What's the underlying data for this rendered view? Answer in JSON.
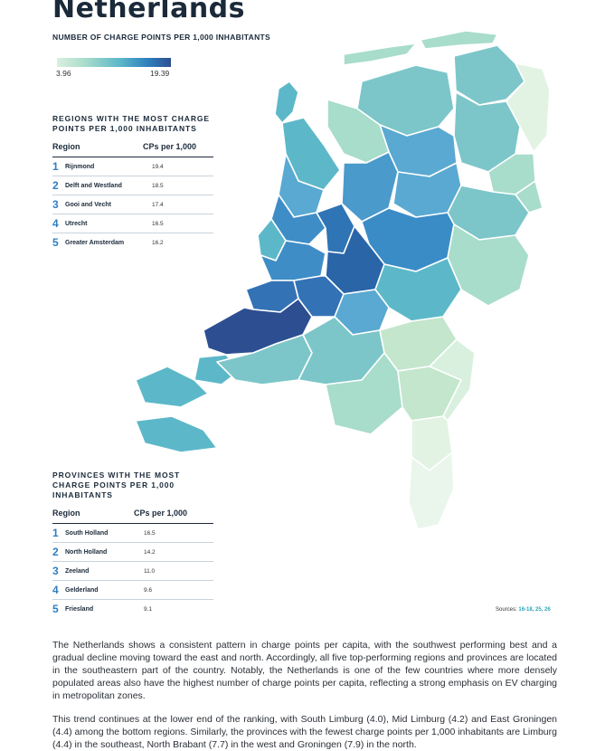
{
  "header": {
    "title": "Netherlands",
    "subtitle": "NUMBER OF CHARGE POINTS PER 1,000 INHABITANTS"
  },
  "legend": {
    "min": "3.96",
    "max": "19.39",
    "colors": [
      "#d9f0df",
      "#a8dccb",
      "#5cb8c9",
      "#2d7fbd",
      "#2d4f91"
    ]
  },
  "regions_panel": {
    "title": "REGIONS WITH THE MOST CHARGE POINTS PER 1,000 INHABITANTS",
    "col_region": "Region",
    "col_value": "CPs per 1,000",
    "rows": [
      {
        "rank": "1",
        "name": "Rijnmond",
        "value": "19.4"
      },
      {
        "rank": "2",
        "name": "Delft and Westland",
        "value": "18.5"
      },
      {
        "rank": "3",
        "name": "Gooi and Vecht",
        "value": "17.4"
      },
      {
        "rank": "4",
        "name": "Utrecht",
        "value": "16.5"
      },
      {
        "rank": "5",
        "name": "Greater Amsterdam",
        "value": "16.2"
      }
    ]
  },
  "provinces_panel": {
    "title": "PROVINCES WITH THE MOST CHARGE POINTS PER 1,000 INHABITANTS",
    "col_region": "Region",
    "col_value": "CPs per 1,000",
    "rows": [
      {
        "rank": "1",
        "name": "South Holland",
        "value": "16.5"
      },
      {
        "rank": "2",
        "name": "North Holland",
        "value": "14.2"
      },
      {
        "rank": "3",
        "name": "Zeeland",
        "value": "11.0"
      },
      {
        "rank": "4",
        "name": "Gelderland",
        "value": "9.6"
      },
      {
        "rank": "5",
        "name": "Friesland",
        "value": "9.1"
      }
    ]
  },
  "sources": {
    "label": "Sources:",
    "refs": "16-18, 25, 26"
  },
  "body": {
    "p1": "The Netherlands shows a consistent pattern in charge points per capita, with the southwest performing best and a gradual decline moving toward the east and north. Accordingly, all five top-performing regions and provinces are located in the southeastern part of the country. Notably, the Netherlands is one of the few countries where more densely populated areas also have the highest number of charge points per capita, reflecting a strong emphasis on EV charging in metropolitan zones.",
    "p2": "This trend continues at the lower end of the ranking, with South Limburg (4.0), Mid Limburg (4.2) and East Groningen (4.4) among the bottom regions. Similarly, the provinces with the fewest charge points per 1,000 inhabitants are Limburg (4.4) in the southeast, North Brabant (7.7) in the west and Groningen (7.9) in the north."
  }
}
